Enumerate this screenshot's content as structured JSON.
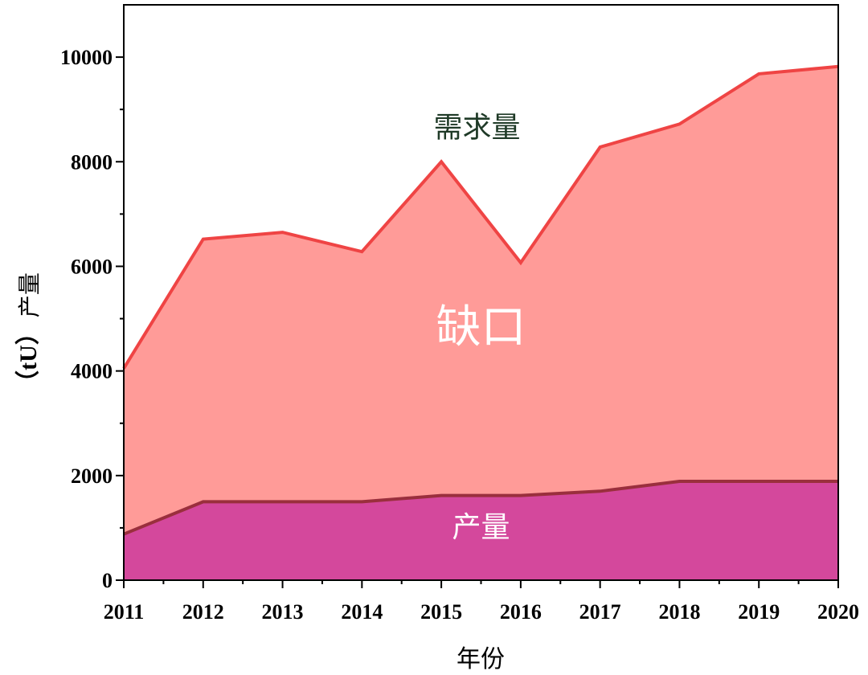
{
  "chart_data": {
    "type": "area",
    "x": [
      2011,
      2012,
      2013,
      2014,
      2015,
      2016,
      2017,
      2018,
      2019,
      2020
    ],
    "series": [
      {
        "name": "需求量",
        "values": [
          4050,
          6520,
          6650,
          6280,
          8000,
          6070,
          8280,
          8720,
          9680,
          9820
        ],
        "color": "#ef4444",
        "fill": "#ff9b98"
      },
      {
        "name": "产量",
        "values": [
          880,
          1500,
          1500,
          1500,
          1620,
          1620,
          1700,
          1890,
          1890,
          1890
        ],
        "color": "#9a2f3d",
        "fill": "#d4489c"
      }
    ],
    "xlabel": "年份",
    "ylabel": {
      "cjk": "产量",
      "latin": "（tU）"
    },
    "xlim": [
      2011,
      2020
    ],
    "ylim": [
      0,
      11000
    ],
    "y_ticks": [
      0,
      2000,
      4000,
      6000,
      8000,
      10000
    ],
    "y_minor_step": 1000,
    "grid": false,
    "annotations": {
      "demand": {
        "text": "需求量",
        "at": [
          2015.45,
          8470
        ],
        "color": "#1f3a27",
        "size": 36
      },
      "gap": {
        "text": "缺口",
        "at": [
          2015.5,
          4550
        ],
        "color": "#ffffff",
        "size": 56
      },
      "production": {
        "text": "产量",
        "at": [
          2015.5,
          830
        ],
        "color": "#ffffff",
        "size": 36
      }
    }
  }
}
